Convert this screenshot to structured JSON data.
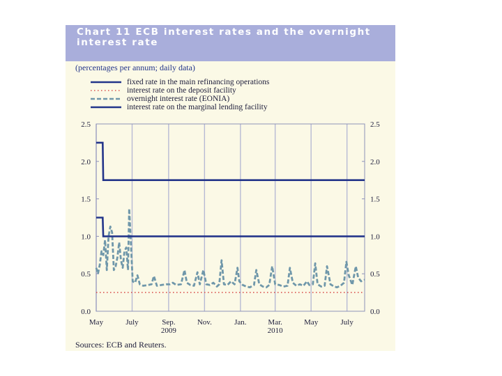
{
  "title": "Chart 11 ECB interest rates and the overnight interest rate",
  "subtitle": "(percentages per annum; daily data)",
  "source": "Sources: ECB and Reuters.",
  "colors": {
    "dark_blue": "#23358a",
    "eonia": "#6f97aa",
    "deposit": "#d9534f",
    "grid": "#b7bad4"
  },
  "legend": [
    {
      "label": "fixed rate in the main refinancing operations",
      "style": "solid-dark"
    },
    {
      "label": "interest rate on the deposit facility",
      "style": "dotted-red"
    },
    {
      "label": "overnight interest rate (EONIA)",
      "style": "dashed-teal"
    },
    {
      "label": "interest rate on the marginal lending facility",
      "style": "solid-dark"
    }
  ],
  "chart_data": {
    "type": "line",
    "x_range": [
      "2009-05-01",
      "2010-07-31"
    ],
    "ylim": [
      0,
      2.5
    ],
    "y_ticks": [
      "0.0",
      "0.5",
      "1.0",
      "1.5",
      "2.0",
      "2.5"
    ],
    "x_ticks": [
      "May",
      "July",
      "Sep.",
      "Nov.",
      "Jan.",
      "Mar.",
      "May",
      "July"
    ],
    "x_tick_dates": [
      "2009-05-01",
      "2009-07-01",
      "2009-09-01",
      "2009-11-01",
      "2010-01-01",
      "2010-03-01",
      "2010-05-01",
      "2010-07-01"
    ],
    "year_labels": [
      {
        "text": "2009",
        "date": "2009-09-01"
      },
      {
        "text": "2010",
        "date": "2010-03-01"
      }
    ],
    "grid": true,
    "series": [
      {
        "name": "fixed rate in the main refinancing operations",
        "style": "solid-dark",
        "points": [
          [
            "2009-05-01",
            1.25
          ],
          [
            "2009-05-12",
            1.25
          ],
          [
            "2009-05-13",
            1.0
          ],
          [
            "2010-07-31",
            1.0
          ]
        ]
      },
      {
        "name": "interest rate on the deposit facility",
        "style": "dotted-red",
        "points": [
          [
            "2009-05-01",
            0.25
          ],
          [
            "2010-07-31",
            0.25
          ]
        ]
      },
      {
        "name": "overnight interest rate (EONIA)",
        "style": "dashed-teal",
        "points": [
          [
            "2009-05-01",
            0.58
          ],
          [
            "2009-05-04",
            0.5
          ],
          [
            "2009-05-07",
            0.62
          ],
          [
            "2009-05-10",
            0.8
          ],
          [
            "2009-05-13",
            0.75
          ],
          [
            "2009-05-16",
            0.95
          ],
          [
            "2009-05-19",
            0.55
          ],
          [
            "2009-05-22",
            1.0
          ],
          [
            "2009-05-25",
            1.13
          ],
          [
            "2009-05-28",
            1.05
          ],
          [
            "2009-05-31",
            0.55
          ],
          [
            "2009-06-03",
            0.6
          ],
          [
            "2009-06-06",
            0.72
          ],
          [
            "2009-06-09",
            0.92
          ],
          [
            "2009-06-12",
            0.68
          ],
          [
            "2009-06-15",
            0.58
          ],
          [
            "2009-06-18",
            0.8
          ],
          [
            "2009-06-21",
            0.85
          ],
          [
            "2009-06-24",
            0.55
          ],
          [
            "2009-06-26",
            1.37
          ],
          [
            "2009-06-29",
            0.9
          ],
          [
            "2009-07-02",
            0.4
          ],
          [
            "2009-07-06",
            0.38
          ],
          [
            "2009-07-10",
            0.48
          ],
          [
            "2009-07-14",
            0.36
          ],
          [
            "2009-07-20",
            0.34
          ],
          [
            "2009-07-28",
            0.35
          ],
          [
            "2009-08-03",
            0.36
          ],
          [
            "2009-08-07",
            0.47
          ],
          [
            "2009-08-12",
            0.34
          ],
          [
            "2009-08-20",
            0.35
          ],
          [
            "2009-08-28",
            0.36
          ],
          [
            "2009-09-03",
            0.36
          ],
          [
            "2009-09-08",
            0.38
          ],
          [
            "2009-09-14",
            0.35
          ],
          [
            "2009-09-22",
            0.36
          ],
          [
            "2009-09-28",
            0.55
          ],
          [
            "2009-10-02",
            0.38
          ],
          [
            "2009-10-08",
            0.35
          ],
          [
            "2009-10-14",
            0.34
          ],
          [
            "2009-10-20",
            0.52
          ],
          [
            "2009-10-24",
            0.36
          ],
          [
            "2009-10-30",
            0.55
          ],
          [
            "2009-11-04",
            0.36
          ],
          [
            "2009-11-10",
            0.35
          ],
          [
            "2009-11-16",
            0.38
          ],
          [
            "2009-11-22",
            0.33
          ],
          [
            "2009-11-26",
            0.36
          ],
          [
            "2009-11-30",
            0.68
          ],
          [
            "2009-12-04",
            0.36
          ],
          [
            "2009-12-10",
            0.35
          ],
          [
            "2009-12-16",
            0.4
          ],
          [
            "2009-12-22",
            0.36
          ],
          [
            "2009-12-27",
            0.58
          ],
          [
            "2009-12-30",
            0.4
          ],
          [
            "2010-01-05",
            0.35
          ],
          [
            "2010-01-11",
            0.33
          ],
          [
            "2010-01-17",
            0.32
          ],
          [
            "2010-01-24",
            0.35
          ],
          [
            "2010-01-28",
            0.55
          ],
          [
            "2010-02-02",
            0.36
          ],
          [
            "2010-02-08",
            0.33
          ],
          [
            "2010-02-14",
            0.32
          ],
          [
            "2010-02-19",
            0.35
          ],
          [
            "2010-02-24",
            0.6
          ],
          [
            "2010-03-01",
            0.36
          ],
          [
            "2010-03-08",
            0.35
          ],
          [
            "2010-03-15",
            0.33
          ],
          [
            "2010-03-22",
            0.34
          ],
          [
            "2010-03-26",
            0.58
          ],
          [
            "2010-03-31",
            0.38
          ],
          [
            "2010-04-06",
            0.34
          ],
          [
            "2010-04-12",
            0.36
          ],
          [
            "2010-04-18",
            0.34
          ],
          [
            "2010-04-24",
            0.4
          ],
          [
            "2010-04-28",
            0.35
          ],
          [
            "2010-05-04",
            0.36
          ],
          [
            "2010-05-08",
            0.64
          ],
          [
            "2010-05-12",
            0.36
          ],
          [
            "2010-05-18",
            0.33
          ],
          [
            "2010-05-24",
            0.34
          ],
          [
            "2010-05-28",
            0.6
          ],
          [
            "2010-06-03",
            0.36
          ],
          [
            "2010-06-09",
            0.33
          ],
          [
            "2010-06-14",
            0.32
          ],
          [
            "2010-06-20",
            0.34
          ],
          [
            "2010-06-26",
            0.38
          ],
          [
            "2010-06-30",
            0.66
          ],
          [
            "2010-07-04",
            0.48
          ],
          [
            "2010-07-10",
            0.35
          ],
          [
            "2010-07-16",
            0.6
          ],
          [
            "2010-07-20",
            0.45
          ],
          [
            "2010-07-25",
            0.4
          ],
          [
            "2010-07-31",
            0.42
          ]
        ]
      },
      {
        "name": "interest rate on the marginal lending facility",
        "style": "solid-dark",
        "points": [
          [
            "2009-05-01",
            2.25
          ],
          [
            "2009-05-12",
            2.25
          ],
          [
            "2009-05-13",
            1.75
          ],
          [
            "2010-07-31",
            1.75
          ]
        ]
      }
    ]
  }
}
